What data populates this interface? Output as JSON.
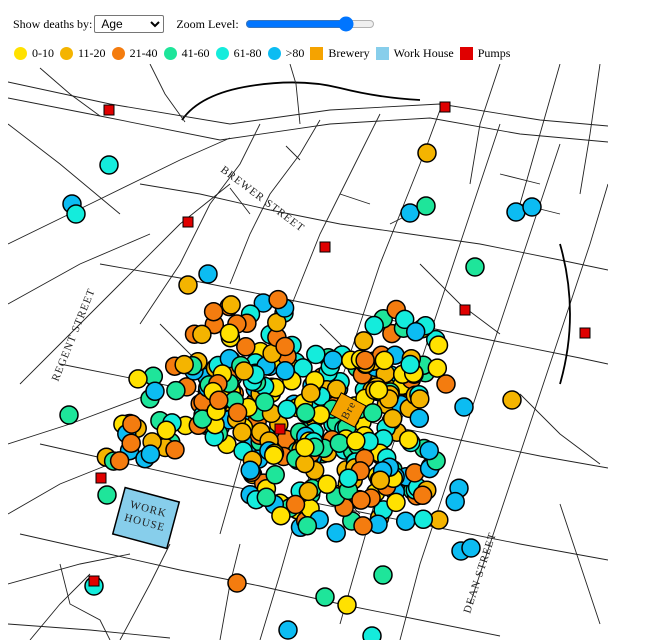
{
  "controls": {
    "show_by_label": "Show deaths by:",
    "show_by_value": "Age",
    "show_by_options": [
      "Age",
      "Gender"
    ],
    "zoom_label": "Zoom Level:",
    "zoom_value": 0.82
  },
  "legend": [
    {
      "label": "0-10",
      "color": "#ffe100",
      "shape": "circle"
    },
    {
      "label": "11-20",
      "color": "#f4b400",
      "shape": "circle"
    },
    {
      "label": "21-40",
      "color": "#f47c0f",
      "shape": "circle"
    },
    {
      "label": "41-60",
      "color": "#1ee59a",
      "shape": "circle"
    },
    {
      "label": "61-80",
      "color": "#14ecdc",
      "shape": "circle"
    },
    {
      "label": ">80",
      "color": "#0cbcf2",
      "shape": "circle"
    },
    {
      "label": "Brewery",
      "color": "#f5a300",
      "shape": "square"
    },
    {
      "label": "Work House",
      "color": "#87ceeb",
      "shape": "square"
    },
    {
      "label": "Pumps",
      "color": "#e00000",
      "shape": "square"
    }
  ],
  "map": {
    "streets": [
      "BREWER STREET",
      "REGENT STREET",
      "DEAN STREET"
    ],
    "workhouse_label_1": "WORK",
    "workhouse_label_2": "HOUSE",
    "brewery_label": "Bre"
  }
}
